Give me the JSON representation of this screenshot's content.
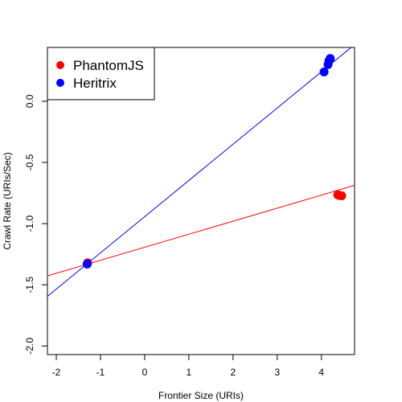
{
  "chart_data": {
    "type": "scatter",
    "title": "",
    "xlabel": "Frontier Size (URIs)",
    "ylabel": "Crawl Rate (URIs/Sec)",
    "xlim": [
      -2.2,
      4.75
    ],
    "ylim": [
      -2.07,
      0.44
    ],
    "x_ticks": [
      -2,
      -1,
      0,
      1,
      2,
      3,
      4
    ],
    "y_ticks": [
      -2.0,
      -1.5,
      -1.0,
      -0.5,
      0.0
    ],
    "y_tick_labels": [
      "-2.0",
      "-1.5",
      "-1.0",
      "-0.5",
      "0.0"
    ],
    "legend_position": "top-left",
    "grid": false,
    "series": [
      {
        "name": "PhantomJS",
        "color": "#ff0000",
        "points": [
          {
            "x": -1.3,
            "y": -1.33
          },
          {
            "x": -1.29,
            "y": -1.32
          },
          {
            "x": 4.37,
            "y": -0.765
          },
          {
            "x": 4.4,
            "y": -0.77
          },
          {
            "x": 4.43,
            "y": -0.77
          },
          {
            "x": 4.46,
            "y": -0.772
          }
        ],
        "fit": {
          "slope": 0.1065,
          "intercept": -1.193
        }
      },
      {
        "name": "Heritrix",
        "color": "#0000ff",
        "points": [
          {
            "x": -1.3,
            "y": -1.33
          },
          {
            "x": 4.06,
            "y": 0.24
          },
          {
            "x": 4.15,
            "y": 0.3
          },
          {
            "x": 4.17,
            "y": 0.33
          },
          {
            "x": 4.19,
            "y": 0.34
          },
          {
            "x": 4.2,
            "y": 0.35
          }
        ],
        "fit": {
          "slope": 0.296,
          "intercept": -0.943
        }
      }
    ]
  }
}
